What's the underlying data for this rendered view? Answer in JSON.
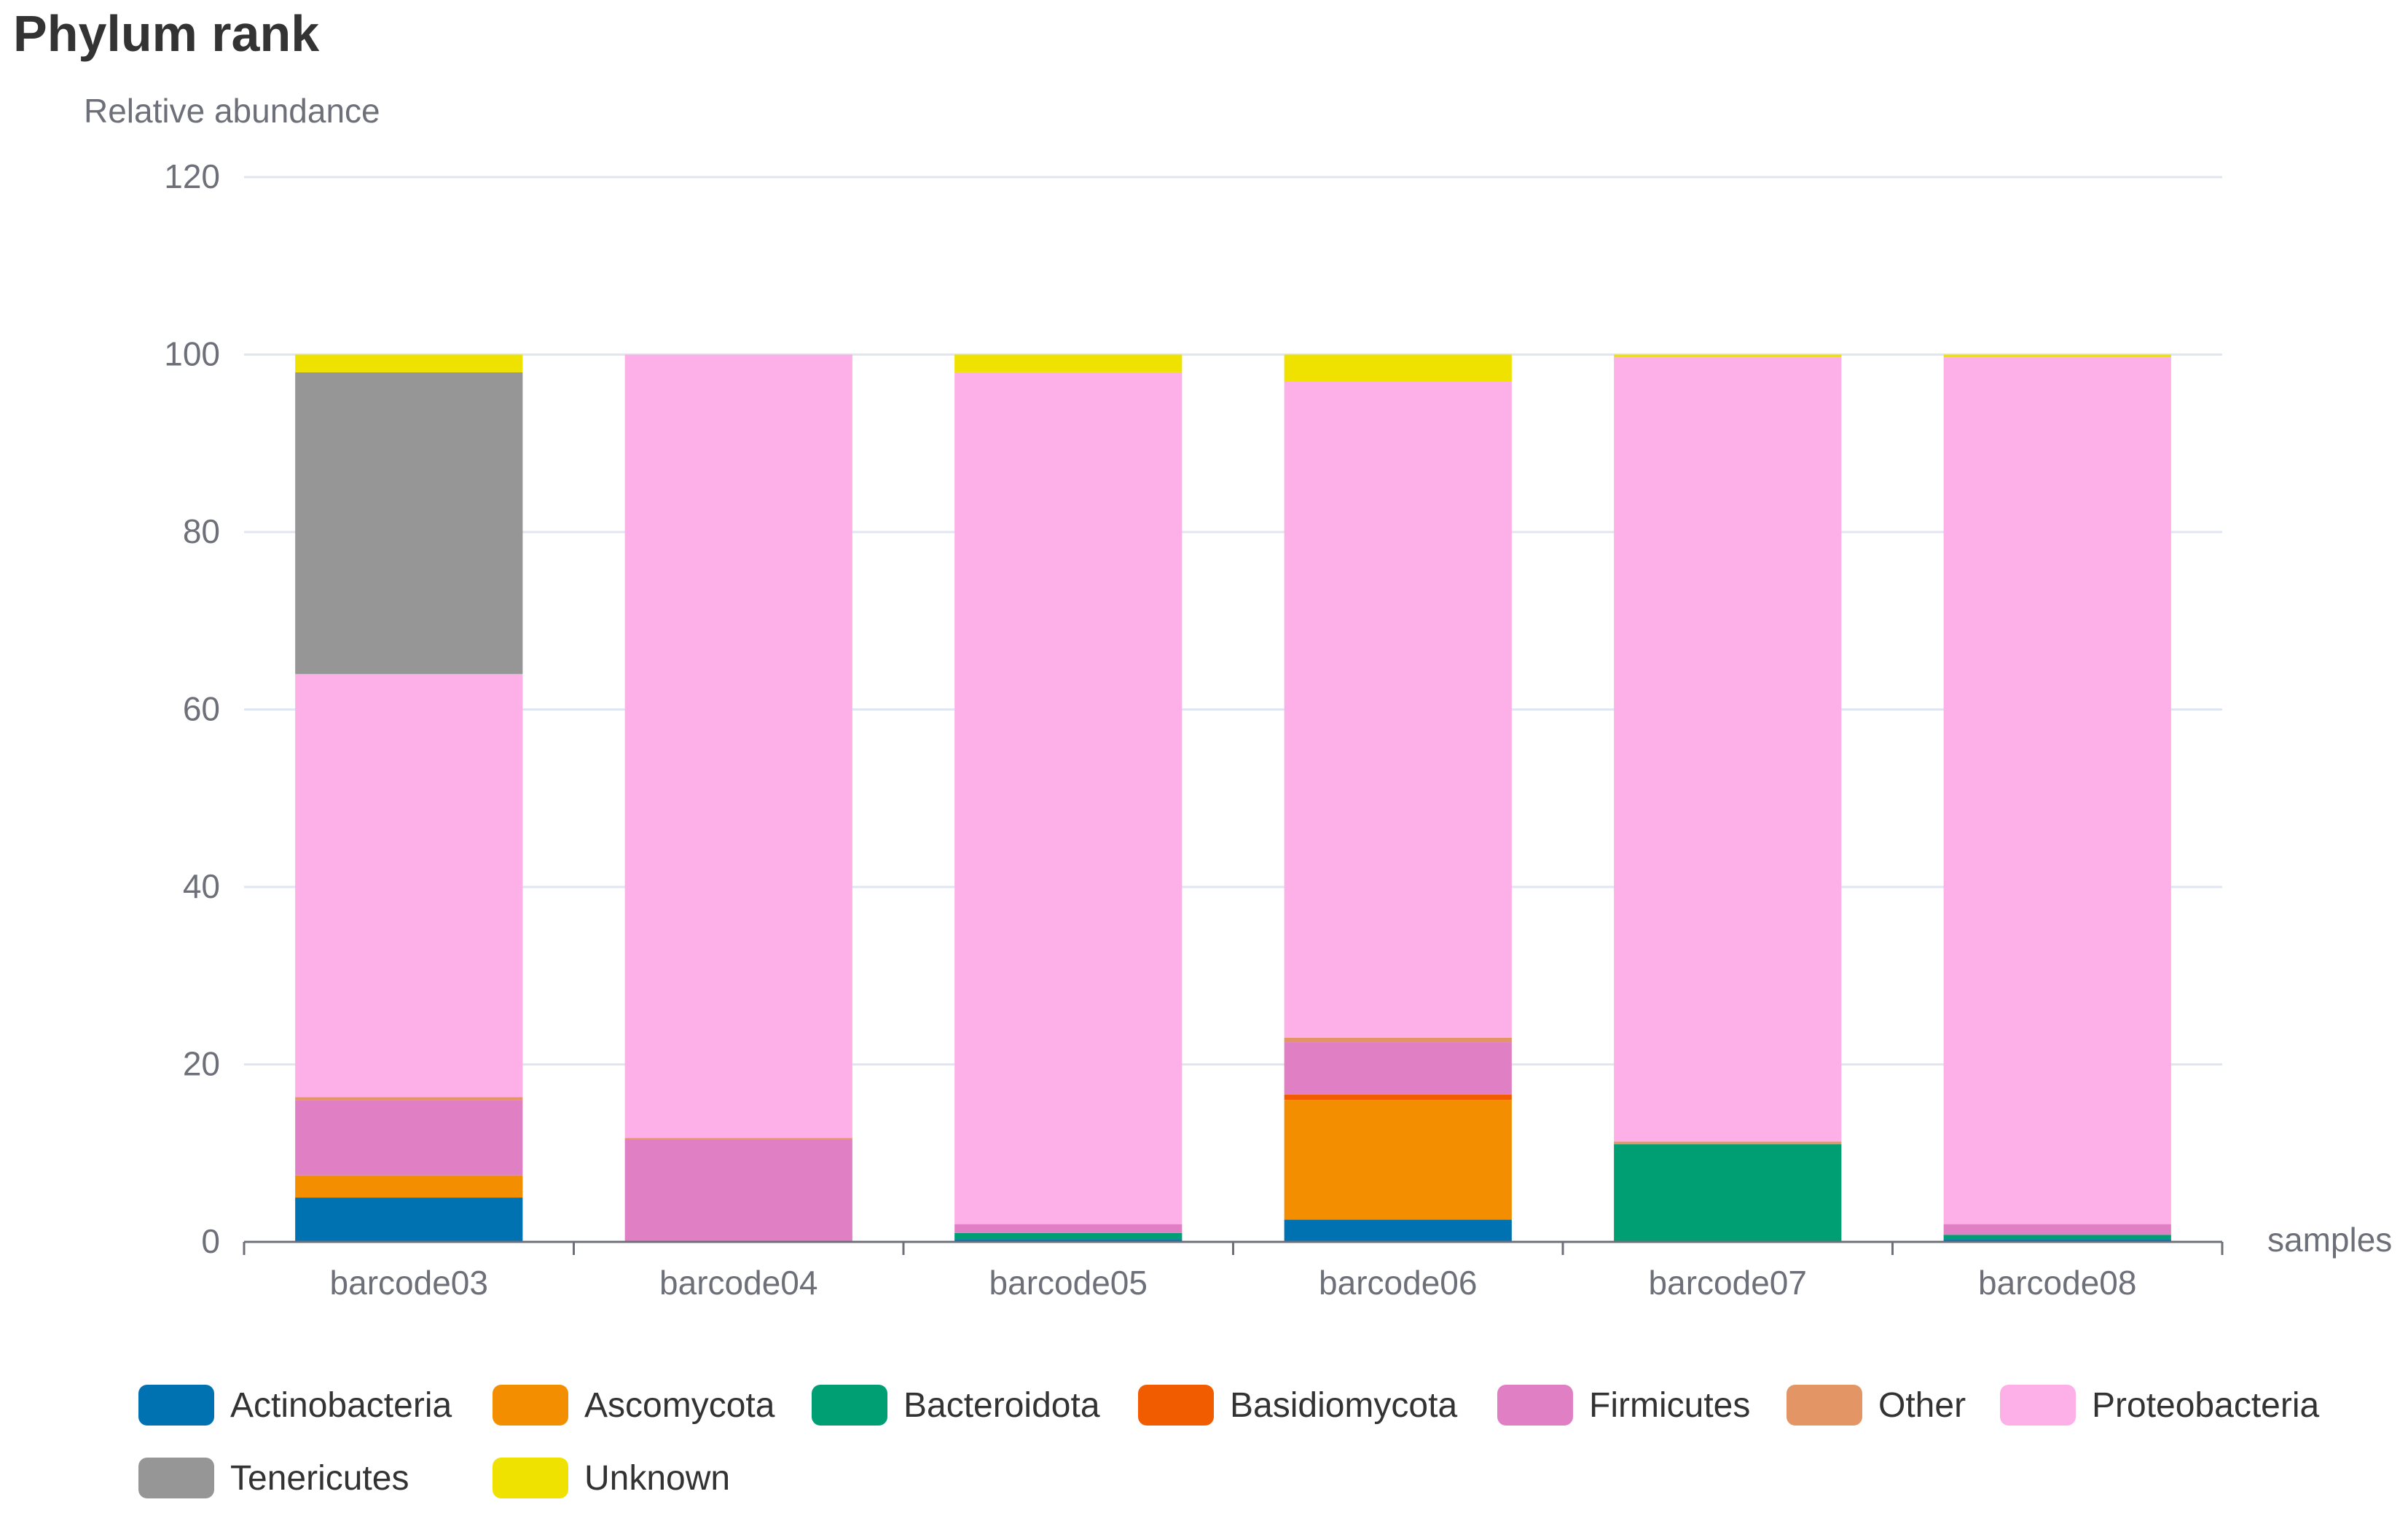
{
  "chart_data": {
    "type": "bar",
    "stacked": true,
    "title": "Phylum rank",
    "ylabel": "Relative abundance",
    "xlabel": "samples",
    "ylim": [
      0,
      120
    ],
    "yticks": [
      0,
      20,
      40,
      60,
      80,
      100,
      120
    ],
    "grid": true,
    "legend_position": "bottom",
    "categories": [
      "barcode03",
      "barcode04",
      "barcode05",
      "barcode06",
      "barcode07",
      "barcode08"
    ],
    "series": [
      {
        "name": "Actinobacteria",
        "color": "#0072b2",
        "values": [
          5,
          0,
          0.3,
          2.5,
          0,
          0.3
        ]
      },
      {
        "name": "Ascomycota",
        "color": "#f28e00",
        "values": [
          2.5,
          0,
          0,
          13.5,
          0,
          0
        ]
      },
      {
        "name": "Bacteroidota",
        "color": "#009e73",
        "values": [
          0,
          0,
          0.7,
          0,
          11,
          0.5
        ]
      },
      {
        "name": "Basidiomycota",
        "color": "#f25c00",
        "values": [
          0,
          0,
          0,
          0.6,
          0,
          0
        ]
      },
      {
        "name": "Firmicutes",
        "color": "#e07fc4",
        "values": [
          8.5,
          11.5,
          1,
          5.9,
          0,
          1.2
        ]
      },
      {
        "name": "Other",
        "color": "#e39565",
        "values": [
          0.3,
          0.2,
          0,
          0.5,
          0.3,
          0
        ]
      },
      {
        "name": "Proteobacteria",
        "color": "#fdb0e7",
        "values": [
          47.7,
          88.3,
          96,
          74,
          88.4,
          97.7
        ]
      },
      {
        "name": "Tenericutes",
        "color": "#969696",
        "values": [
          34,
          0,
          0,
          0,
          0,
          0
        ]
      },
      {
        "name": "Unknown",
        "color": "#f0e200",
        "values": [
          2,
          0,
          2,
          3,
          0.3,
          0.3
        ]
      }
    ]
  }
}
